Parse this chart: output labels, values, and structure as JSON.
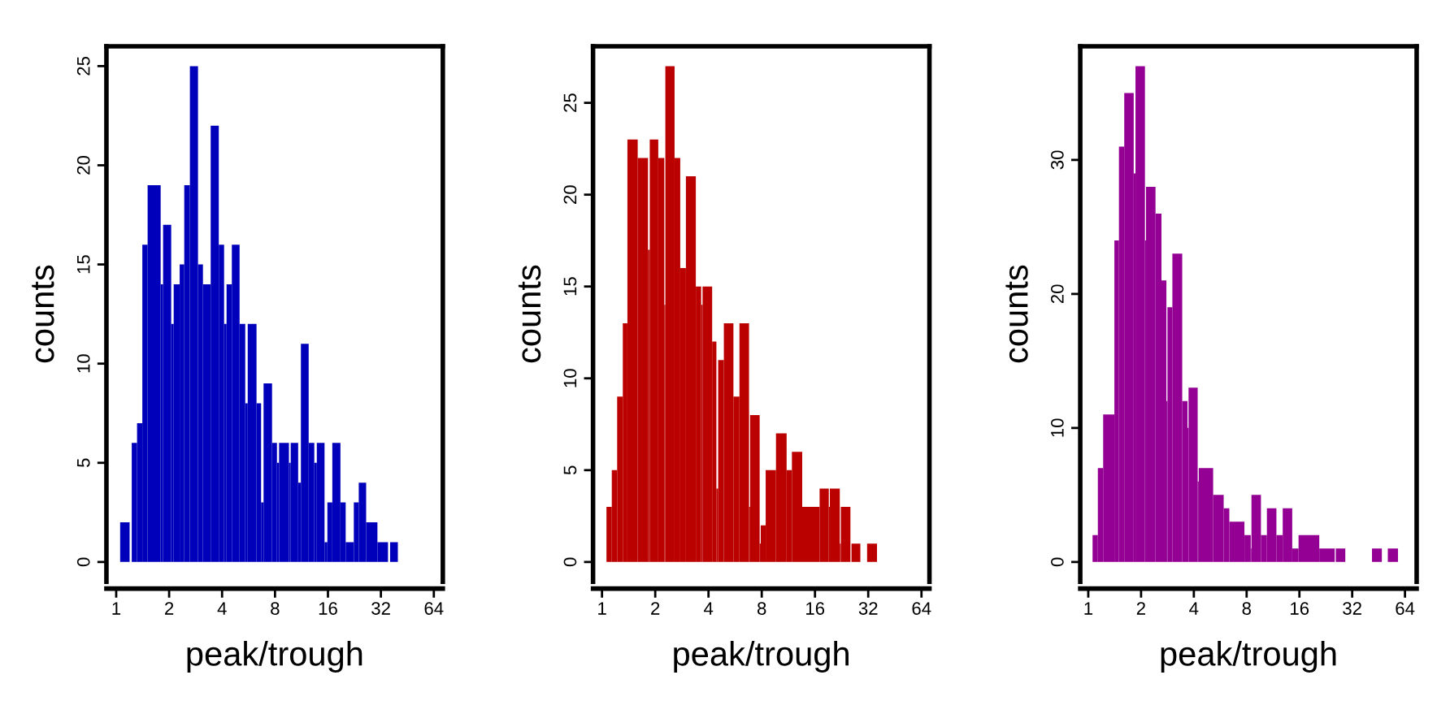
{
  "chart_data": [
    {
      "type": "histogram",
      "xlabel": "peak/trough",
      "ylabel": "counts",
      "color": "#0000bb",
      "log": "x",
      "bins": [
        1.053,
        1.192,
        1.226,
        1.314,
        1.408,
        1.509,
        1.79,
        1.848,
        2.055,
        2.123,
        2.296,
        2.438,
        2.625,
        2.919,
        3.114,
        3.446,
        3.832,
        4.107,
        4.242,
        4.546,
        5.031,
        5.418,
        5.596,
        6.28,
        6.668,
        6.887,
        7.694,
        8.206,
        8.437,
        9.601,
        9.826,
        10.83,
        11.23,
        12.43,
        13.38,
        13.83,
        15.3,
        15.88,
        16.94,
        18.84,
        20.18,
        22.45,
        23.95,
        26.38,
        30.58,
        35.12,
        36.1,
        39.96
      ],
      "values": [
        2,
        0,
        6,
        7,
        16,
        19,
        14,
        17,
        12,
        14,
        15,
        19,
        25,
        15,
        14,
        22,
        16,
        12,
        14,
        16,
        12,
        8,
        12,
        8,
        3,
        9,
        6,
        5,
        6,
        5,
        6,
        4,
        11,
        6,
        5,
        6,
        1,
        3,
        6,
        3,
        1,
        3,
        4,
        2,
        1,
        0,
        1
      ],
      "xlim": [
        0.88,
        72
      ],
      "xticks": [
        1,
        2,
        4,
        8,
        16,
        32,
        64
      ],
      "ylim": [
        -1,
        26
      ],
      "yticks": [
        0,
        5,
        10,
        15,
        20,
        25
      ]
    },
    {
      "type": "histogram",
      "xlabel": "peak/trough",
      "ylabel": "counts",
      "color": "#bb0000",
      "log": "x",
      "bins": [
        1.06,
        1.136,
        1.218,
        1.311,
        1.392,
        1.592,
        1.82,
        1.862,
        2.08,
        2.25,
        2.281,
        2.572,
        2.769,
        2.981,
        3.392,
        3.636,
        3.703,
        4.195,
        4.434,
        4.537,
        4.885,
        5.534,
        5.985,
        6.78,
        6.874,
        7.787,
        7.895,
        8.421,
        9.628,
        11.06,
        11.85,
        13.55,
        16.99,
        19.15,
        19.42,
        22.1,
        22.4,
        25.38,
        25.73,
        28.88,
        31.53,
        35.87
      ],
      "values": [
        3,
        5,
        9,
        13,
        23,
        22,
        17,
        23,
        22,
        14,
        27,
        22,
        16,
        21,
        15,
        14,
        15,
        12,
        4,
        11,
        13,
        9,
        13,
        3,
        8,
        1,
        2,
        5,
        7,
        5,
        6,
        3,
        4,
        3,
        4,
        1,
        3,
        0,
        1,
        0,
        1
      ],
      "xlim": [
        0.89,
        71
      ],
      "xticks": [
        1,
        2,
        4,
        8,
        16,
        32,
        64
      ],
      "ylim": [
        -1.08,
        28.08
      ],
      "yticks": [
        0,
        5,
        10,
        15,
        20,
        25
      ]
    },
    {
      "type": "histogram",
      "xlabel": "peak/trough",
      "ylabel": "counts",
      "color": "#930093",
      "log": "x",
      "bins": [
        1.058,
        1.134,
        1.216,
        1.409,
        1.496,
        1.604,
        1.816,
        1.859,
        2.105,
        2.135,
        2.418,
        2.615,
        2.79,
        2.829,
        3.017,
        3.434,
        3.68,
        3.731,
        4.207,
        4.266,
        5.154,
        5.919,
        6.374,
        7.773,
        8.445,
        8.523,
        9.655,
        10.44,
        11.83,
        12.85,
        14.56,
        15.82,
        20.77,
        25.45,
        25.8,
        29.23,
        41.5,
        47.24,
        51.08,
        58.4
      ],
      "values": [
        2,
        7,
        11,
        24,
        31,
        35,
        29,
        37,
        24,
        28,
        26,
        21,
        12,
        19,
        23,
        12,
        10,
        13,
        6,
        7,
        5,
        4,
        3,
        2,
        1,
        5,
        2,
        4,
        2,
        4,
        1,
        2,
        1,
        0,
        1,
        0,
        1,
        0,
        1
      ],
      "xlim": [
        0.9,
        74.6
      ],
      "xticks": [
        1,
        2,
        4,
        8,
        16,
        32,
        64
      ],
      "ylim": [
        -1.48,
        38.48
      ],
      "yticks": [
        0,
        10,
        20,
        30
      ]
    }
  ]
}
